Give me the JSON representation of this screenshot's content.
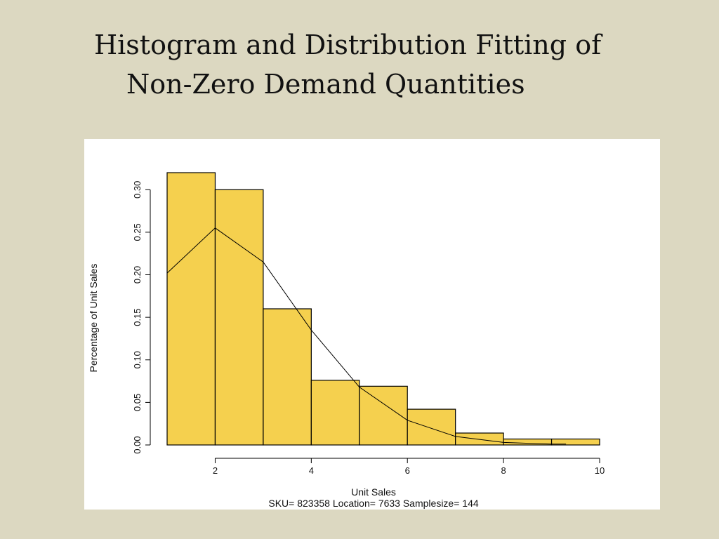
{
  "slide": {
    "title_line1": "Histogram and Distribution Fitting of",
    "title_line2": "Non-Zero Demand Quantities"
  },
  "colors": {
    "background": "#dcd8c1",
    "bar_fill": "#f5d04e",
    "bar_stroke": "#000000",
    "line": "#000000"
  },
  "chart_data": {
    "type": "bar",
    "xlabel": "Unit Sales",
    "ylabel": "Percentage of Unit Sales",
    "subtitle": "SKU= 823358 Location= 7633 Samplesize= 144",
    "xlim": [
      1,
      10
    ],
    "ylim": [
      0,
      0.32
    ],
    "x_ticks": [
      2,
      4,
      6,
      8,
      10
    ],
    "y_ticks": [
      0.0,
      0.05,
      0.1,
      0.15,
      0.2,
      0.25,
      0.3
    ],
    "x_tick_labels": [
      "2",
      "4",
      "6",
      "8",
      "10"
    ],
    "y_tick_labels": [
      "0.00",
      "0.05",
      "0.10",
      "0.15",
      "0.20",
      "0.25",
      "0.30"
    ],
    "histogram": {
      "bin_edges": [
        1,
        2,
        3,
        4,
        5,
        6,
        7,
        8,
        9,
        10
      ],
      "values": [
        0.32,
        0.3,
        0.16,
        0.076,
        0.069,
        0.042,
        0.014,
        0.007,
        0.007
      ]
    },
    "fitted_line": {
      "x": [
        1,
        2,
        3,
        4,
        5,
        6,
        7,
        8,
        9,
        9.3
      ],
      "y": [
        0.202,
        0.255,
        0.215,
        0.135,
        0.068,
        0.029,
        0.01,
        0.003,
        0.001,
        0.001
      ]
    },
    "grid": false,
    "legend": "none"
  }
}
